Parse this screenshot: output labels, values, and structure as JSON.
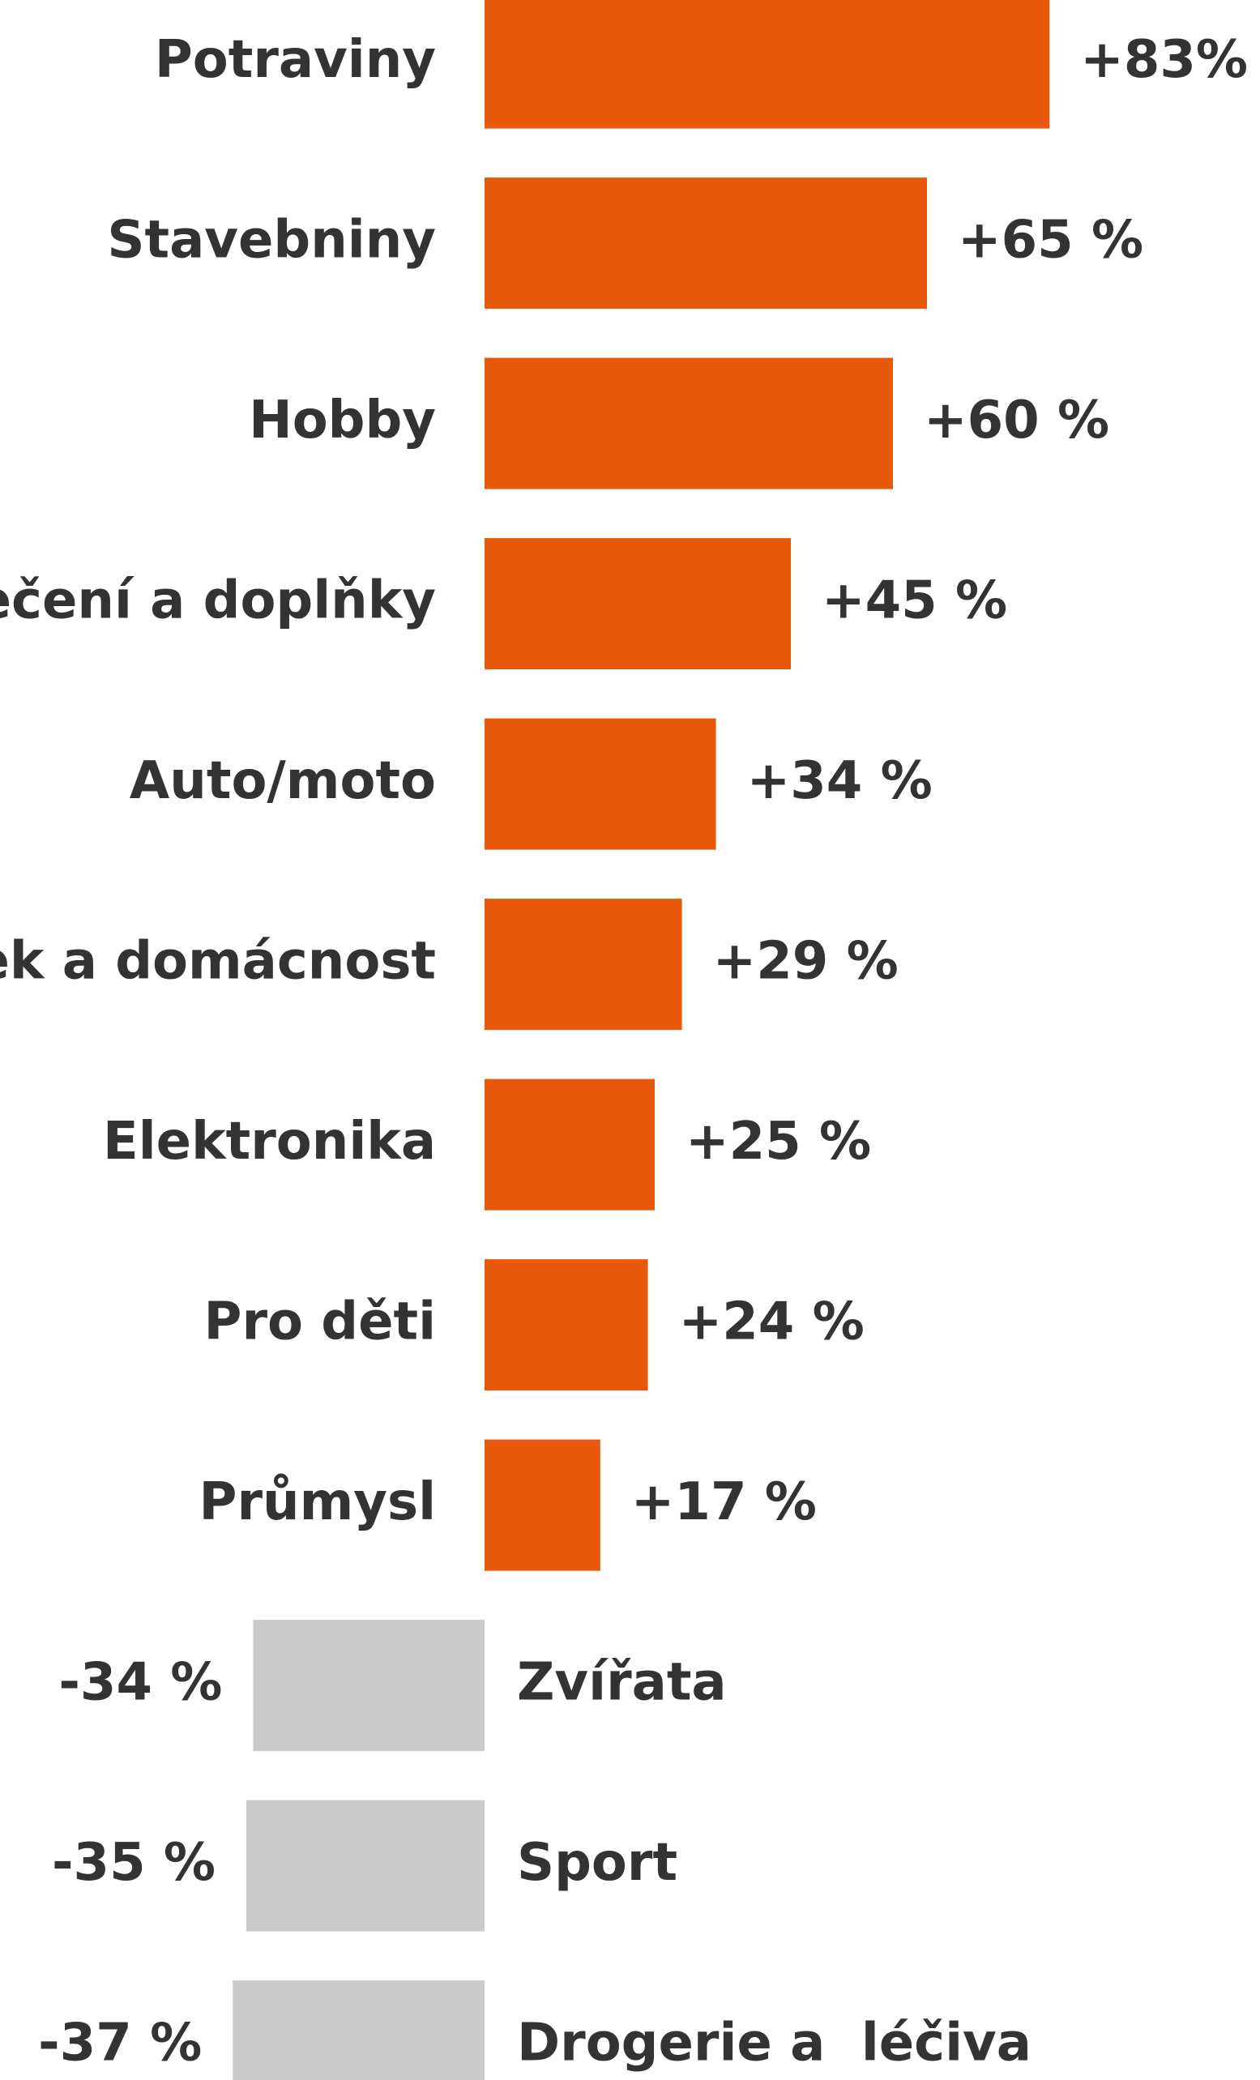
{
  "chart_data": {
    "type": "bar",
    "orientation": "horizontal",
    "categories": [
      "Potraviny",
      "Stavebniny",
      "Hobby",
      "ečení a doplňky",
      "Auto/moto",
      "ek a domácnost",
      "Elektronika",
      "Pro děti",
      "Průmysl",
      "Zvířata",
      "Sport",
      "Drogerie a  léčiva"
    ],
    "values": [
      83,
      65,
      60,
      45,
      34,
      29,
      25,
      24,
      17,
      -34,
      -35,
      -37
    ],
    "value_labels": [
      "+83%",
      "+65 %",
      "+60 %",
      "+45 %",
      "+34 %",
      "+29 %",
      "+25 %",
      "+24 %",
      "+17 %",
      "-34 %",
      "-35 %",
      "-37 %"
    ],
    "color_positive": "#e8590c",
    "color_negative": "#cbcbcb"
  }
}
